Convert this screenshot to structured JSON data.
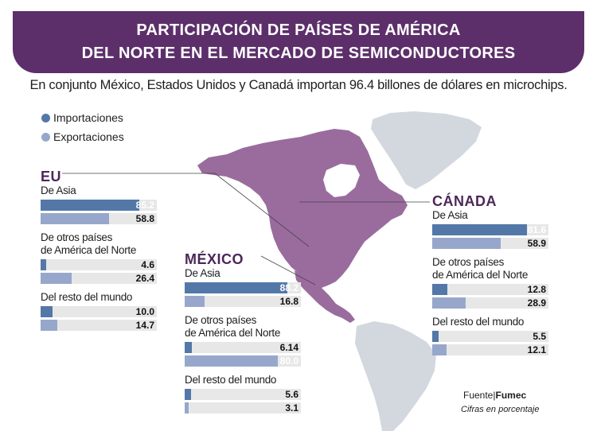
{
  "header": {
    "title_line1": "PARTICIPACIÓN DE PAÍSES DE AMÉRICA",
    "title_line2": "DEL NORTE EN EL MERCADO DE SEMICONDUCTORES",
    "subtitle": "En conjunto México, Estados Unidos y Canadá importan 96.4 billones de dólares en microchips."
  },
  "legend": {
    "importaciones": "Importaciones",
    "exportaciones": "Exportaciones"
  },
  "colors": {
    "banner": "#5c2f6a",
    "importaciones": "#5378a8",
    "exportaciones": "#97a7cc",
    "bar_track": "#e7e7e8",
    "north_america": "#9a6c9e",
    "other_land": "#d3d8df"
  },
  "chart_data": {
    "type": "bar",
    "unit": "%",
    "xlim": [
      0,
      100
    ],
    "series_names": [
      "Importaciones",
      "Exportaciones"
    ],
    "countries": [
      {
        "name": "EU",
        "groups": [
          {
            "label_lines": [
              "De Asia"
            ],
            "importaciones": 85.2,
            "exportaciones": 58.8,
            "import_label": "85.2",
            "export_label": "58.8"
          },
          {
            "label_lines": [
              "De otros países",
              "de América del Norte"
            ],
            "importaciones": 4.6,
            "exportaciones": 26.4,
            "import_label": "4.6",
            "export_label": "26.4"
          },
          {
            "label_lines": [
              "Del resto del mundo"
            ],
            "importaciones": 10.0,
            "exportaciones": 14.7,
            "import_label": "10.0",
            "export_label": "14.7"
          }
        ]
      },
      {
        "name": "MÉXICO",
        "groups": [
          {
            "label_lines": [
              "De Asia"
            ],
            "importaciones": 88.2,
            "exportaciones": 16.8,
            "import_label": "88.2",
            "export_label": "16.8"
          },
          {
            "label_lines": [
              "De otros países",
              "de América del Norte"
            ],
            "importaciones": 6.14,
            "exportaciones": 80.0,
            "import_label": "6.14",
            "export_label": "80.0"
          },
          {
            "label_lines": [
              "Del resto del mundo"
            ],
            "importaciones": 5.6,
            "exportaciones": 3.1,
            "import_label": "5.6",
            "export_label": "3.1"
          }
        ]
      },
      {
        "name": "CÁNADA",
        "groups": [
          {
            "label_lines": [
              "De Asia"
            ],
            "importaciones": 81.6,
            "exportaciones": 58.9,
            "import_label": "81.6",
            "export_label": "58.9"
          },
          {
            "label_lines": [
              "De otros países",
              "de América del Norte"
            ],
            "importaciones": 12.8,
            "exportaciones": 28.9,
            "import_label": "12.8",
            "export_label": "28.9"
          },
          {
            "label_lines": [
              "Del resto del mundo"
            ],
            "importaciones": 5.5,
            "exportaciones": 12.1,
            "import_label": "5.5",
            "export_label": "12.1"
          }
        ]
      }
    ]
  },
  "footer": {
    "source_prefix": "Fuente",
    "source_name": "Fumec",
    "note": "Cifras en porcentaje"
  }
}
